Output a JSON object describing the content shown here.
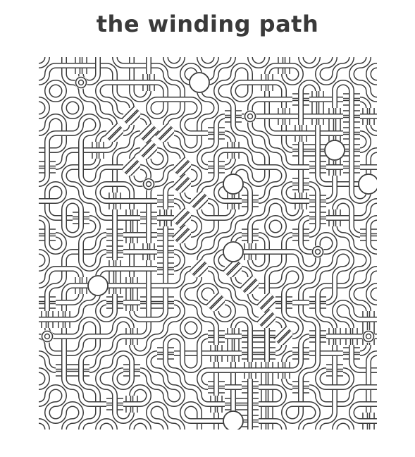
{
  "title": "the winding path",
  "colors": {
    "ink": "#3a3a3a",
    "fill": "#ffffff",
    "title": "#3a3a3a"
  },
  "grid": {
    "cols": 20,
    "rows": 22
  },
  "hotspots": [
    {
      "col": 9,
      "row": 1
    },
    {
      "col": 17,
      "row": 5
    },
    {
      "col": 11,
      "row": 7
    },
    {
      "col": 19,
      "row": 7
    },
    {
      "col": 11,
      "row": 11
    },
    {
      "col": 3,
      "row": 13
    },
    {
      "col": 11,
      "row": 21
    }
  ],
  "small_rings": [
    {
      "col": 2,
      "row": 1
    },
    {
      "col": 12,
      "row": 3
    },
    {
      "col": 6,
      "row": 7
    },
    {
      "col": 16,
      "row": 11
    },
    {
      "col": 19,
      "row": 16
    },
    {
      "col": 0,
      "row": 16
    }
  ]
}
